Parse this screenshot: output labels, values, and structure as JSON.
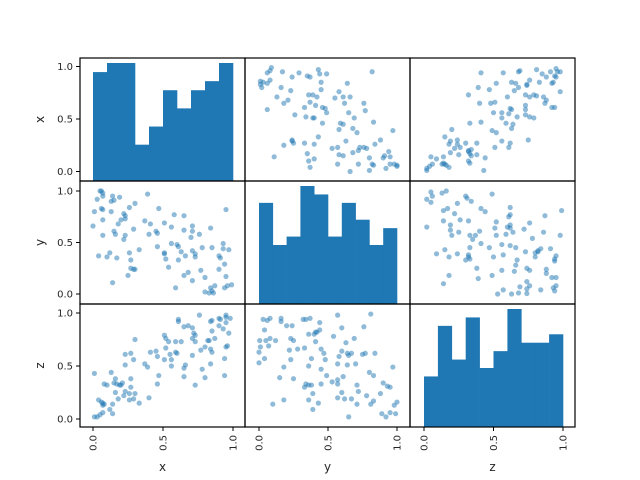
{
  "chart_data": {
    "type": "scatter_matrix",
    "variables": [
      "x",
      "y",
      "z"
    ],
    "ticks": [
      0.0,
      0.5,
      1.0
    ],
    "tick_labels": [
      "0.0",
      "0.5",
      "1.0"
    ],
    "point_color": "#1f77b4",
    "point_alpha": 0.5,
    "hist_color": "#1f77b4",
    "histograms": {
      "x": {
        "bins": 10,
        "range": [
          0.0,
          1.0
        ],
        "counts": [
          12,
          13,
          13,
          4,
          6,
          10,
          8,
          10,
          11,
          13
        ]
      },
      "y": {
        "bins": 10,
        "range": [
          0.0,
          1.0
        ],
        "counts": [
          12,
          7,
          8,
          14,
          13,
          8,
          12,
          10,
          7,
          9
        ]
      },
      "z": {
        "bins": 10,
        "range": [
          0.0,
          1.0
        ],
        "counts": [
          6,
          12,
          8,
          13,
          7,
          9,
          14,
          10,
          10,
          11
        ]
      }
    },
    "pairs": {
      "x_y": [
        [
          0.05,
          1.0
        ],
        [
          0.06,
          1.0
        ],
        [
          0.07,
          0.98
        ],
        [
          0.03,
          0.92
        ],
        [
          0.07,
          0.95
        ],
        [
          0.14,
          0.95
        ],
        [
          0.19,
          0.94
        ],
        [
          0.13,
          0.9
        ],
        [
          0.15,
          0.91
        ],
        [
          0.3,
          0.88
        ],
        [
          0.26,
          0.84
        ],
        [
          0.39,
          0.97
        ],
        [
          0.47,
          0.83
        ],
        [
          0.01,
          0.8
        ],
        [
          0.06,
          0.83
        ],
        [
          0.07,
          0.82
        ],
        [
          0.13,
          0.8
        ],
        [
          0.22,
          0.78
        ],
        [
          0.23,
          0.76
        ],
        [
          0.23,
          0.73
        ],
        [
          0.2,
          0.72
        ],
        [
          0.18,
          0.68
        ],
        [
          0.07,
          0.72
        ],
        [
          0.0,
          0.66
        ],
        [
          0.15,
          0.61
        ],
        [
          0.16,
          0.58
        ],
        [
          0.07,
          0.57
        ],
        [
          0.23,
          0.57
        ],
        [
          0.22,
          0.53
        ],
        [
          0.29,
          0.63
        ],
        [
          0.37,
          0.71
        ],
        [
          0.41,
          0.68
        ],
        [
          0.4,
          0.58
        ],
        [
          0.45,
          0.61
        ],
        [
          0.46,
          0.59
        ],
        [
          0.51,
          0.69
        ],
        [
          0.56,
          0.65
        ],
        [
          0.58,
          0.77
        ],
        [
          0.65,
          0.76
        ],
        [
          0.71,
          0.66
        ],
        [
          0.65,
          0.62
        ],
        [
          0.71,
          0.61
        ],
        [
          0.7,
          0.55
        ],
        [
          0.76,
          0.58
        ],
        [
          0.84,
          0.64
        ],
        [
          0.95,
          0.82
        ],
        [
          0.04,
          0.37
        ],
        [
          0.1,
          0.36
        ],
        [
          0.12,
          0.4
        ],
        [
          0.17,
          0.35
        ],
        [
          0.26,
          0.4
        ],
        [
          0.27,
          0.33
        ],
        [
          0.33,
          0.43
        ],
        [
          0.27,
          0.25
        ],
        [
          0.29,
          0.24
        ],
        [
          0.3,
          0.24
        ],
        [
          0.25,
          0.18
        ],
        [
          0.14,
          0.11
        ],
        [
          0.46,
          0.46
        ],
        [
          0.51,
          0.4
        ],
        [
          0.51,
          0.39
        ],
        [
          0.52,
          0.34
        ],
        [
          0.54,
          0.26
        ],
        [
          0.56,
          0.49
        ],
        [
          0.6,
          0.48
        ],
        [
          0.61,
          0.46
        ],
        [
          0.63,
          0.41
        ],
        [
          0.61,
          0.33
        ],
        [
          0.66,
          0.37
        ],
        [
          0.71,
          0.42
        ],
        [
          0.73,
          0.39
        ],
        [
          0.73,
          0.36
        ],
        [
          0.78,
          0.45
        ],
        [
          0.85,
          0.45
        ],
        [
          0.93,
          0.49
        ],
        [
          0.93,
          0.44
        ],
        [
          0.97,
          0.43
        ],
        [
          0.9,
          0.37
        ],
        [
          0.91,
          0.35
        ],
        [
          0.94,
          0.29
        ],
        [
          0.9,
          0.24
        ],
        [
          0.77,
          0.23
        ],
        [
          0.8,
          0.16
        ],
        [
          0.71,
          0.13
        ],
        [
          0.68,
          0.21
        ],
        [
          0.65,
          0.18
        ],
        [
          0.59,
          0.06
        ],
        [
          0.8,
          0.02
        ],
        [
          0.83,
          0.01
        ],
        [
          0.84,
          0.06
        ],
        [
          0.85,
          0.03
        ],
        [
          0.86,
          0.01
        ],
        [
          0.87,
          0.08
        ],
        [
          0.95,
          0.17
        ],
        [
          0.94,
          0.06
        ],
        [
          0.96,
          0.08
        ],
        [
          0.99,
          0.09
        ]
      ],
      "x_z": [
        [
          0.01,
          0.02
        ],
        [
          0.03,
          0.02
        ],
        [
          0.05,
          0.04
        ],
        [
          0.07,
          0.06
        ],
        [
          0.12,
          0.09
        ],
        [
          0.14,
          0.05
        ],
        [
          0.04,
          0.18
        ],
        [
          0.06,
          0.16
        ],
        [
          0.07,
          0.15
        ],
        [
          0.07,
          0.13
        ],
        [
          0.08,
          0.14
        ],
        [
          0.14,
          0.14
        ],
        [
          0.01,
          0.43
        ],
        [
          0.13,
          0.44
        ],
        [
          0.08,
          0.33
        ],
        [
          0.1,
          0.32
        ],
        [
          0.15,
          0.34
        ],
        [
          0.16,
          0.38
        ],
        [
          0.17,
          0.33
        ],
        [
          0.19,
          0.32
        ],
        [
          0.2,
          0.32
        ],
        [
          0.21,
          0.34
        ],
        [
          0.27,
          0.38
        ],
        [
          0.27,
          0.3
        ],
        [
          0.16,
          0.25
        ],
        [
          0.23,
          0.26
        ],
        [
          0.26,
          0.24
        ],
        [
          0.3,
          0.24
        ],
        [
          0.22,
          0.22
        ],
        [
          0.18,
          0.19
        ],
        [
          0.26,
          0.18
        ],
        [
          0.29,
          0.19
        ],
        [
          0.33,
          0.15
        ],
        [
          0.4,
          0.2
        ],
        [
          0.23,
          0.51
        ],
        [
          0.29,
          0.56
        ],
        [
          0.23,
          0.61
        ],
        [
          0.27,
          0.62
        ],
        [
          0.3,
          0.75
        ],
        [
          0.37,
          0.52
        ],
        [
          0.39,
          0.49
        ],
        [
          0.41,
          0.63
        ],
        [
          0.45,
          0.64
        ],
        [
          0.46,
          0.59
        ],
        [
          0.47,
          0.41
        ],
        [
          0.46,
          0.33
        ],
        [
          0.51,
          0.79
        ],
        [
          0.52,
          0.76
        ],
        [
          0.54,
          0.73
        ],
        [
          0.52,
          0.67
        ],
        [
          0.51,
          0.56
        ],
        [
          0.56,
          0.56
        ],
        [
          0.56,
          0.5
        ],
        [
          0.59,
          0.73
        ],
        [
          0.63,
          0.73
        ],
        [
          0.59,
          0.63
        ],
        [
          0.6,
          0.62
        ],
        [
          0.55,
          0.61
        ],
        [
          0.66,
          0.51
        ],
        [
          0.65,
          0.48
        ],
        [
          0.65,
          0.4
        ],
        [
          0.73,
          0.32
        ],
        [
          0.61,
          0.94
        ],
        [
          0.61,
          0.92
        ],
        [
          0.65,
          0.87
        ],
        [
          0.68,
          0.88
        ],
        [
          0.71,
          0.86
        ],
        [
          0.72,
          0.81
        ],
        [
          0.73,
          0.79
        ],
        [
          0.71,
          0.76
        ],
        [
          0.73,
          0.73
        ],
        [
          0.76,
          0.98
        ],
        [
          0.71,
          0.6
        ],
        [
          0.77,
          0.65
        ],
        [
          0.8,
          0.68
        ],
        [
          0.82,
          0.74
        ],
        [
          0.83,
          0.74
        ],
        [
          0.84,
          0.66
        ],
        [
          0.85,
          0.63
        ],
        [
          0.84,
          0.52
        ],
        [
          0.78,
          0.47
        ],
        [
          0.8,
          0.39
        ],
        [
          0.84,
          0.92
        ],
        [
          0.85,
          0.93
        ],
        [
          0.85,
          0.83
        ],
        [
          0.87,
          0.76
        ],
        [
          0.9,
          0.95
        ],
        [
          0.91,
          0.94
        ],
        [
          0.9,
          0.88
        ],
        [
          0.93,
          0.85
        ],
        [
          0.95,
          0.98
        ],
        [
          0.95,
          0.96
        ],
        [
          0.95,
          0.91
        ],
        [
          0.98,
          0.95
        ],
        [
          0.97,
          0.81
        ],
        [
          0.95,
          0.68
        ],
        [
          0.96,
          0.69
        ],
        [
          0.94,
          0.57
        ],
        [
          0.94,
          0.41
        ]
      ],
      "y_z": [
        [
          0.03,
          0.94
        ],
        [
          0.06,
          0.93
        ],
        [
          0.08,
          0.95
        ],
        [
          0.16,
          0.95
        ],
        [
          0.16,
          0.92
        ],
        [
          0.2,
          0.88
        ],
        [
          0.24,
          0.88
        ],
        [
          0.04,
          0.84
        ],
        [
          0.005,
          0.74
        ],
        [
          0.05,
          0.74
        ],
        [
          0.08,
          0.76
        ],
        [
          0.12,
          0.74
        ],
        [
          0.01,
          0.68
        ],
        [
          0.07,
          0.69
        ],
        [
          0.0,
          0.63
        ],
        [
          0.04,
          0.57
        ],
        [
          0.0,
          0.53
        ],
        [
          0.23,
          0.76
        ],
        [
          0.25,
          0.74
        ],
        [
          0.22,
          0.65
        ],
        [
          0.28,
          0.66
        ],
        [
          0.33,
          0.67
        ],
        [
          0.32,
          0.94
        ],
        [
          0.34,
          0.94
        ],
        [
          0.37,
          0.95
        ],
        [
          0.44,
          0.91
        ],
        [
          0.36,
          0.8
        ],
        [
          0.4,
          0.8
        ],
        [
          0.41,
          0.82
        ],
        [
          0.42,
          0.82
        ],
        [
          0.44,
          0.84
        ],
        [
          0.41,
          0.73
        ],
        [
          0.45,
          0.66
        ],
        [
          0.47,
          0.62
        ],
        [
          0.48,
          0.56
        ],
        [
          0.38,
          0.57
        ],
        [
          0.36,
          0.5
        ],
        [
          0.23,
          0.56
        ],
        [
          0.18,
          0.49
        ],
        [
          0.45,
          0.47
        ],
        [
          0.15,
          0.39
        ],
        [
          0.25,
          0.38
        ],
        [
          0.34,
          0.33
        ],
        [
          0.33,
          0.3
        ],
        [
          0.36,
          0.32
        ],
        [
          0.38,
          0.32
        ],
        [
          0.45,
          0.33
        ],
        [
          0.49,
          0.41
        ],
        [
          0.53,
          0.35
        ],
        [
          0.57,
          0.37
        ],
        [
          0.57,
          0.33
        ],
        [
          0.61,
          0.4
        ],
        [
          0.57,
          0.98
        ],
        [
          0.6,
          0.86
        ],
        [
          0.54,
          0.78
        ],
        [
          0.63,
          0.72
        ],
        [
          0.69,
          0.76
        ],
        [
          0.6,
          0.64
        ],
        [
          0.58,
          0.59
        ],
        [
          0.64,
          0.62
        ],
        [
          0.67,
          0.62
        ],
        [
          0.65,
          0.6
        ],
        [
          0.57,
          0.52
        ],
        [
          0.64,
          0.51
        ],
        [
          0.7,
          0.52
        ],
        [
          0.75,
          0.61
        ],
        [
          0.77,
          0.62
        ],
        [
          0.84,
          0.62
        ],
        [
          0.76,
          0.87
        ],
        [
          0.81,
          0.99
        ],
        [
          0.8,
          0.44
        ],
        [
          0.83,
          0.41
        ],
        [
          0.97,
          0.49
        ],
        [
          0.9,
          0.34
        ],
        [
          0.93,
          0.31
        ],
        [
          0.95,
          0.3
        ],
        [
          0.71,
          0.32
        ],
        [
          0.72,
          0.26
        ],
        [
          0.6,
          0.25
        ],
        [
          0.78,
          0.22
        ],
        [
          0.88,
          0.24
        ],
        [
          0.83,
          0.17
        ],
        [
          0.81,
          0.14
        ],
        [
          0.71,
          0.14
        ],
        [
          0.67,
          0.19
        ],
        [
          0.62,
          0.19
        ],
        [
          0.57,
          0.2
        ],
        [
          0.65,
          0.02
        ],
        [
          0.39,
          0.24
        ],
        [
          0.36,
          0.18
        ],
        [
          0.43,
          0.15
        ],
        [
          0.39,
          0.09
        ],
        [
          0.18,
          0.18
        ],
        [
          0.1,
          0.14
        ],
        [
          0.89,
          0.05
        ],
        [
          0.92,
          0.02
        ],
        [
          0.95,
          0.06
        ],
        [
          0.98,
          0.13
        ],
        [
          1.0,
          0.16
        ],
        [
          0.99,
          0.05
        ]
      ]
    },
    "layout": {
      "grid": "3x3",
      "diagonal": "hist",
      "axis_range": [
        0.0,
        1.0
      ],
      "legend": "none"
    }
  }
}
